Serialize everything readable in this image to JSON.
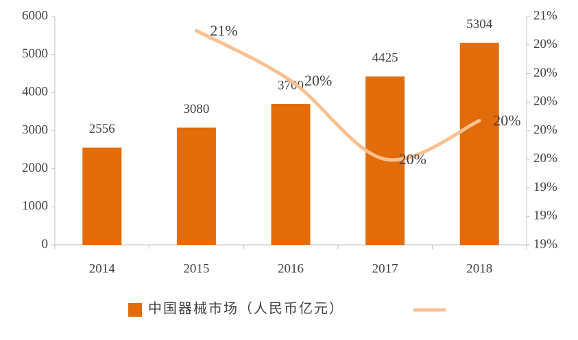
{
  "chart_data": {
    "type": "bar-line",
    "categories": [
      "2014",
      "2015",
      "2016",
      "2017",
      "2018"
    ],
    "series": [
      {
        "name": "中国器械市场（人民币亿元）",
        "type": "bar",
        "color": "#e36c0a",
        "values": [
          2556,
          3080,
          3700,
          4425,
          5304
        ]
      },
      {
        "type": "line",
        "axis": "y2",
        "color": "#fac090",
        "values": [
          null,
          20.5,
          20.15,
          19.6,
          19.87
        ],
        "value_labels": [
          null,
          "21%",
          "20%",
          "20%",
          "20%"
        ]
      }
    ],
    "ylim": [
      0,
      6000
    ],
    "yticks": [
      0,
      1000,
      2000,
      3000,
      4000,
      5000,
      6000
    ],
    "y2lim": [
      19.0,
      20.6
    ],
    "y2ticks": [
      {
        "value": 19.0,
        "label": "19%"
      },
      {
        "value": 19.2,
        "label": "19%"
      },
      {
        "value": 19.4,
        "label": "19%"
      },
      {
        "value": 19.6,
        "label": "20%"
      },
      {
        "value": 19.8,
        "label": "20%"
      },
      {
        "value": 20.0,
        "label": "20%"
      },
      {
        "value": 20.2,
        "label": "20%"
      },
      {
        "value": 20.4,
        "label": "20%"
      },
      {
        "value": 20.6,
        "label": "21%"
      }
    ],
    "legend": "bottom"
  }
}
